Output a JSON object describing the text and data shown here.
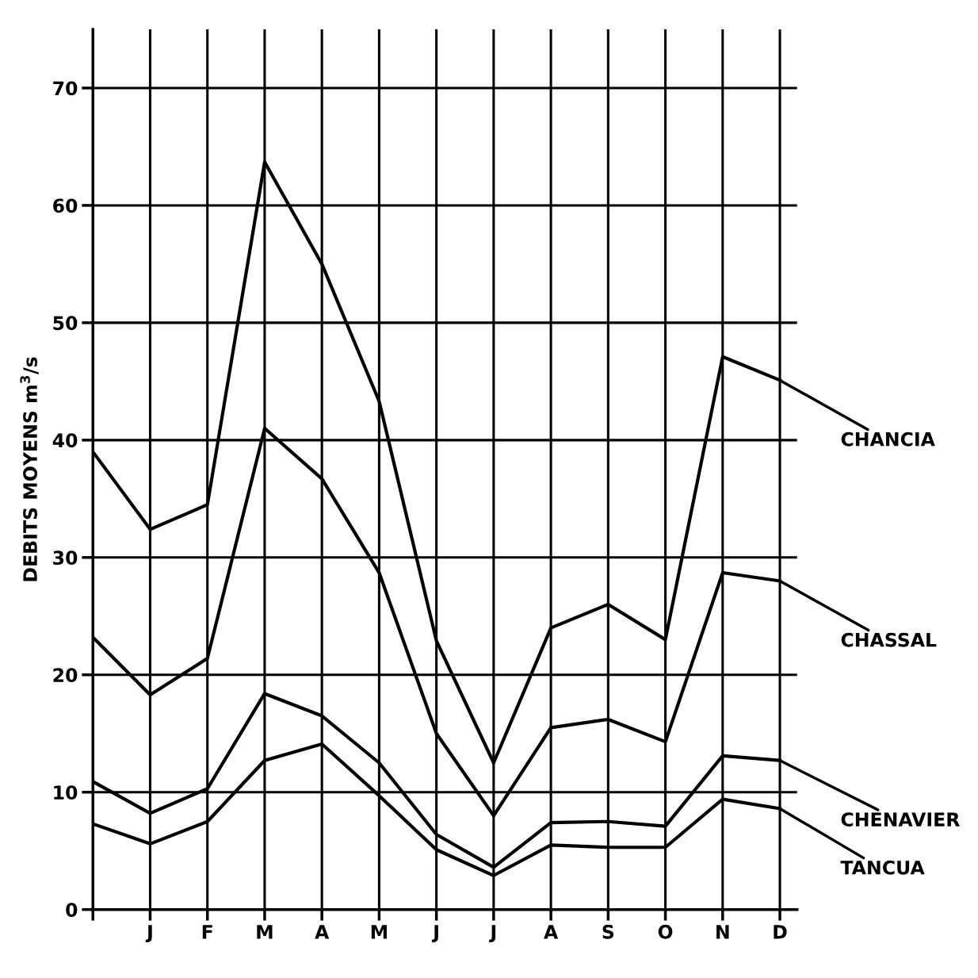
{
  "chart_data": {
    "type": "line",
    "ylabel": "DEBITS MOYENS m$^{3}$/s",
    "categories": [
      null,
      "J",
      "F",
      "M",
      "A",
      "M",
      "J",
      "J",
      "A",
      "S",
      "O",
      "N",
      "D"
    ],
    "series": [
      {
        "color": "#000000",
        "values": [
          39,
          32.4,
          34.5,
          63.7,
          55,
          43.3,
          22.9,
          12.5,
          24,
          26,
          23,
          47.1,
          45.1
        ]
      },
      {
        "color": "#000000",
        "values": [
          23.2,
          18.3,
          21.4,
          41,
          36.7,
          28.7,
          15,
          8,
          15.5,
          16.2,
          14.3,
          28.7,
          28
        ]
      },
      {
        "color": "#000000",
        "values": [
          10.9,
          8.2,
          10.3,
          18.4,
          16.5,
          12.5,
          6.4,
          3.6,
          7.4,
          7.5,
          7.1,
          13.1,
          12.7
        ]
      },
      {
        "color": "#000000",
        "values": [
          7.3,
          5.6,
          7.5,
          12.7,
          14.1,
          9.7,
          5.1,
          2.9,
          5.5,
          5.3,
          5.3,
          9.4,
          8.6
        ]
      }
    ],
    "annotations": [
      {
        "text": "CHANCIA",
        "x": "D",
        "y": 45.1
      },
      {
        "text": "CHASSAL",
        "x": "D",
        "y": 28
      },
      {
        "text": "CHENAVIER",
        "x": "D",
        "y": 12.7
      },
      {
        "text": "TANCUA",
        "x": "D",
        "y": 8.6
      }
    ],
    "ylim": [
      0,
      75
    ],
    "yticks": [
      0,
      10,
      20,
      30,
      40,
      50,
      60,
      70
    ],
    "grid": true,
    "legend": false,
    "marker": "none",
    "line_style": "solid"
  }
}
